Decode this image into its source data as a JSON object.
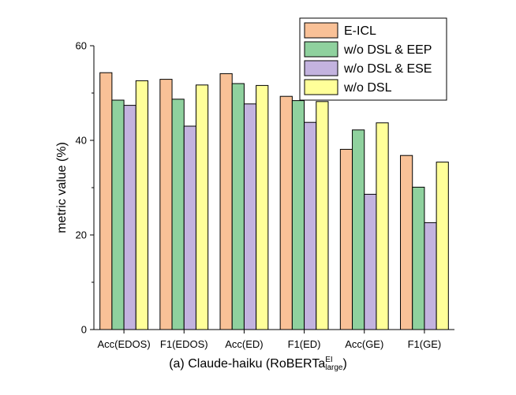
{
  "chart_data": {
    "type": "bar",
    "categories": [
      "Acc(EDOS)",
      "F1(EDOS)",
      "Acc(ED)",
      "F1(ED)",
      "Acc(GE)",
      "F1(GE)"
    ],
    "series": [
      {
        "name": "E-ICL",
        "color": "#f9c197",
        "values": [
          54.3,
          52.9,
          54.1,
          49.3,
          38.1,
          36.8
        ]
      },
      {
        "name": "w/o DSL & EEP",
        "color": "#8fd19e",
        "values": [
          48.5,
          48.7,
          52.0,
          48.4,
          42.2,
          30.1
        ]
      },
      {
        "name": "w/o DSL & ESE",
        "color": "#c3b3df",
        "values": [
          47.4,
          43.0,
          47.7,
          43.8,
          28.6,
          22.6
        ]
      },
      {
        "name": "w/o DSL",
        "color": "#ffff99",
        "values": [
          52.6,
          51.7,
          51.6,
          48.2,
          43.7,
          35.4
        ]
      }
    ],
    "ylabel": "metric value (%)",
    "ylim": [
      0,
      60
    ],
    "yticks": [
      "0",
      "20",
      "40",
      "60"
    ],
    "legend_position": "top-right",
    "grid": false
  },
  "caption": {
    "prefix": "(a) Claude-haiku (RoBERTa",
    "sup": "EI",
    "sub": "large",
    "suffix": ")"
  }
}
